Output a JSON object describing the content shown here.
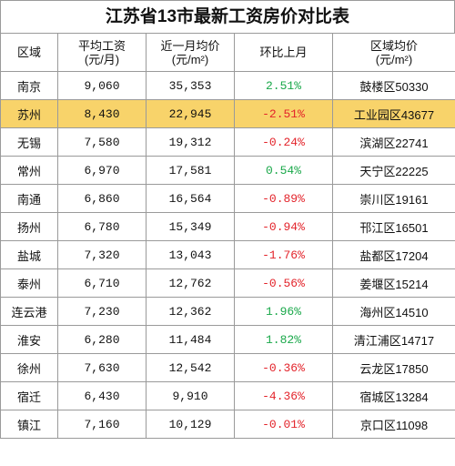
{
  "title": "江苏省13市最新工资房价对比表",
  "colors": {
    "highlight_row": "#f8d36a",
    "positive_change": "#1aa84a",
    "negative_change": "#e3242b",
    "border": "#9a9a9a"
  },
  "headers": {
    "region": "区域",
    "salary_line1": "平均工资",
    "salary_line2": "(元/月)",
    "price_line1": "近一月均价",
    "price_line2": "(元/m²)",
    "change": "环比上月",
    "district_line1": "区域均价",
    "district_line2": "(元/m²)"
  },
  "rows": [
    {
      "city": "南京",
      "salary": "9,060",
      "price": "35,353",
      "change": "2.51%",
      "trend": "up",
      "district": "鼓楼区50330",
      "highlight": false
    },
    {
      "city": "苏州",
      "salary": "8,430",
      "price": "22,945",
      "change": "-2.51%",
      "trend": "down",
      "district": "工业园区43677",
      "highlight": true
    },
    {
      "city": "无锡",
      "salary": "7,580",
      "price": "19,312",
      "change": "-0.24%",
      "trend": "down",
      "district": "滨湖区22741",
      "highlight": false
    },
    {
      "city": "常州",
      "salary": "6,970",
      "price": "17,581",
      "change": "0.54%",
      "trend": "up",
      "district": "天宁区22225",
      "highlight": false
    },
    {
      "city": "南通",
      "salary": "6,860",
      "price": "16,564",
      "change": "-0.89%",
      "trend": "down",
      "district": "崇川区19161",
      "highlight": false
    },
    {
      "city": "扬州",
      "salary": "6,780",
      "price": "15,349",
      "change": "-0.94%",
      "trend": "down",
      "district": "邗江区16501",
      "highlight": false
    },
    {
      "city": "盐城",
      "salary": "7,320",
      "price": "13,043",
      "change": "-1.76%",
      "trend": "down",
      "district": "盐都区17204",
      "highlight": false
    },
    {
      "city": "泰州",
      "salary": "6,710",
      "price": "12,762",
      "change": "-0.56%",
      "trend": "down",
      "district": "姜堰区15214",
      "highlight": false
    },
    {
      "city": "连云港",
      "salary": "7,230",
      "price": "12,362",
      "change": "1.96%",
      "trend": "up",
      "district": "海州区14510",
      "highlight": false
    },
    {
      "city": "淮安",
      "salary": "6,280",
      "price": "11,484",
      "change": "1.82%",
      "trend": "up",
      "district": "清江浦区14717",
      "highlight": false
    },
    {
      "city": "徐州",
      "salary": "7,630",
      "price": "12,542",
      "change": "-0.36%",
      "trend": "down",
      "district": "云龙区17850",
      "highlight": false
    },
    {
      "city": "宿迁",
      "salary": "6,430",
      "price": "9,910",
      "change": "-4.36%",
      "trend": "down",
      "district": "宿城区13284",
      "highlight": false
    },
    {
      "city": "镇江",
      "salary": "7,160",
      "price": "10,129",
      "change": "-0.01%",
      "trend": "down",
      "district": "京口区11098",
      "highlight": false
    }
  ]
}
